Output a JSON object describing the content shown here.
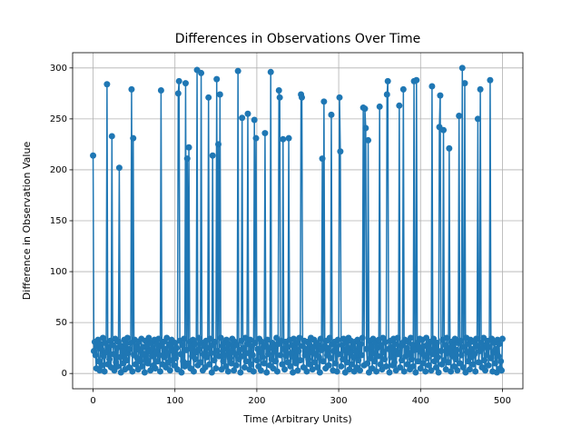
{
  "chart_data": {
    "type": "line",
    "title": "Differences in Observations Over Time",
    "x_label": "Time (Arbitrary Units)",
    "y_label": "Difference in Observation Value",
    "grid": true,
    "xlim": [
      -25,
      525
    ],
    "xticks": [
      0,
      100,
      200,
      300,
      400,
      500
    ],
    "ylim": [
      -15,
      315
    ],
    "yticks": [
      0,
      50,
      100,
      150,
      200,
      250,
      300
    ],
    "x": [
      0,
      1,
      2,
      3,
      4,
      5,
      6,
      7,
      8,
      9,
      10,
      11,
      12,
      13,
      14,
      15,
      16,
      17,
      18,
      19,
      20,
      21,
      22,
      23,
      24,
      25,
      26,
      27,
      28,
      29,
      30,
      31,
      32,
      33,
      34,
      35,
      36,
      37,
      38,
      39,
      40,
      41,
      42,
      43,
      44,
      45,
      46,
      47,
      48,
      49,
      50,
      51,
      52,
      53,
      54,
      55,
      56,
      57,
      58,
      59,
      60,
      61,
      62,
      63,
      64,
      65,
      66,
      67,
      68,
      69,
      70,
      71,
      72,
      73,
      74,
      75,
      76,
      77,
      78,
      79,
      80,
      81,
      82,
      83,
      84,
      85,
      86,
      87,
      88,
      89,
      90,
      91,
      92,
      93,
      94,
      95,
      96,
      97,
      98,
      99,
      100,
      101,
      102,
      103,
      104,
      105,
      106,
      107,
      108,
      109,
      110,
      111,
      112,
      113,
      114,
      115,
      116,
      117,
      118,
      119,
      120,
      121,
      122,
      123,
      124,
      125,
      126,
      127,
      128,
      129,
      130,
      131,
      132,
      133,
      134,
      135,
      136,
      137,
      138,
      139,
      140,
      141,
      142,
      143,
      144,
      145,
      146,
      147,
      148,
      149,
      150,
      151,
      152,
      153,
      154,
      155,
      156,
      157,
      158,
      159,
      160,
      161,
      162,
      163,
      164,
      165,
      166,
      167,
      168,
      169,
      170,
      171,
      172,
      173,
      174,
      175,
      176,
      177,
      178,
      179,
      180,
      181,
      182,
      183,
      184,
      185,
      186,
      187,
      188,
      189,
      190,
      191,
      192,
      193,
      194,
      195,
      196,
      197,
      198,
      199,
      200,
      201,
      202,
      203,
      204,
      205,
      206,
      207,
      208,
      209,
      210,
      211,
      212,
      213,
      214,
      215,
      216,
      217,
      218,
      219,
      220,
      221,
      222,
      223,
      224,
      225,
      226,
      227,
      228,
      229,
      230,
      231,
      232,
      233,
      234,
      235,
      236,
      237,
      238,
      239,
      240,
      241,
      242,
      243,
      244,
      245,
      246,
      247,
      248,
      249,
      250,
      251,
      252,
      253,
      254,
      255,
      256,
      257,
      258,
      259,
      260,
      261,
      262,
      263,
      264,
      265,
      266,
      267,
      268,
      269,
      270,
      271,
      272,
      273,
      274,
      275,
      276,
      277,
      278,
      279,
      280,
      281,
      282,
      283,
      284,
      285,
      286,
      287,
      288,
      289,
      290,
      291,
      292,
      293,
      294,
      295,
      296,
      297,
      298,
      299,
      300,
      301,
      302,
      303,
      304,
      305,
      306,
      307,
      308,
      309,
      310,
      311,
      312,
      313,
      314,
      315,
      316,
      317,
      318,
      319,
      320,
      321,
      322,
      323,
      324,
      325,
      326,
      327,
      328,
      329,
      330,
      331,
      332,
      333,
      334,
      335,
      336,
      337,
      338,
      339,
      340,
      341,
      342,
      343,
      344,
      345,
      346,
      347,
      348,
      349,
      350,
      351,
      352,
      353,
      354,
      355,
      356,
      357,
      358,
      359,
      360,
      361,
      362,
      363,
      364,
      365,
      366,
      367,
      368,
      369,
      370,
      371,
      372,
      373,
      374,
      375,
      376,
      377,
      378,
      379,
      380,
      381,
      382,
      383,
      384,
      385,
      386,
      387,
      388,
      389,
      390,
      391,
      392,
      393,
      394,
      395,
      396,
      397,
      398,
      399,
      400,
      401,
      402,
      403,
      404,
      405,
      406,
      407,
      408,
      409,
      410,
      411,
      412,
      413,
      414,
      415,
      416,
      417,
      418,
      419,
      420,
      421,
      422,
      423,
      424,
      425,
      426,
      427,
      428,
      429,
      430,
      431,
      432,
      433,
      434,
      435,
      436,
      437,
      438,
      439,
      440,
      441,
      442,
      443,
      444,
      445,
      446,
      447,
      448,
      449,
      450,
      451,
      452,
      453,
      454,
      455,
      456,
      457,
      458,
      459,
      460,
      461,
      462,
      463,
      464,
      465,
      466,
      467,
      468,
      469,
      470,
      471,
      472,
      473,
      474,
      475,
      476,
      477,
      478,
      479,
      480,
      481,
      482,
      483,
      484,
      485,
      486,
      487,
      488,
      489,
      490,
      491,
      492,
      493,
      494,
      495,
      496,
      497,
      498,
      499,
      500
    ],
    "series": [
      {
        "color": "#1f77b4",
        "values": [
          214,
          22,
          31,
          18,
          5,
          27,
          33,
          12,
          3,
          29,
          24,
          8,
          35,
          17,
          2,
          30,
          21,
          284,
          9,
          26,
          14,
          32,
          6,
          233,
          28,
          19,
          3,
          34,
          11,
          25,
          7,
          31,
          202,
          16,
          1,
          27,
          22,
          10,
          33,
          4,
          29,
          13,
          35,
          20,
          6,
          24,
          30,
          279,
          2,
          231,
          18,
          33,
          9,
          27,
          15,
          4,
          31,
          23,
          12,
          34,
          7,
          26,
          19,
          1,
          32,
          14,
          28,
          10,
          35,
          22,
          3,
          30,
          17,
          25,
          8,
          33,
          5,
          21,
          29,
          12,
          34,
          18,
          2,
          278,
          27,
          9,
          31,
          16,
          24,
          6,
          35,
          20,
          11,
          29,
          3,
          26,
          33,
          13,
          22,
          8,
          30,
          15,
          25,
          4,
          275,
          287,
          32,
          19,
          1,
          28,
          12,
          34,
          7,
          285,
          23,
          211,
          10,
          222,
          31,
          5,
          26,
          17,
          33,
          2,
          29,
          14,
          21,
          298,
          8,
          35,
          24,
          11,
          295,
          30,
          3,
          19,
          27,
          6,
          32,
          16,
          25,
          271,
          9,
          34,
          20,
          1,
          214,
          28,
          13,
          31,
          5,
          289,
          22,
          225,
          17,
          274,
          35,
          4,
          27,
          12,
          30,
          18,
          7,
          33,
          24,
          2,
          29,
          15,
          21,
          10,
          34,
          26,
          3,
          31,
          19,
          8,
          28,
          297,
          14,
          23,
          1,
          32,
          251,
          17,
          25,
          6,
          35,
          12,
          29,
          255,
          20,
          4,
          33,
          9,
          27,
          18,
          2,
          249,
          30,
          231,
          13,
          24,
          7,
          34,
          21,
          3,
          31,
          16,
          26,
          10,
          236,
          28,
          1,
          33,
          19,
          25,
          8,
          296,
          14,
          30,
          5,
          27,
          22,
          12,
          35,
          2,
          29,
          278,
          271,
          18,
          32,
          9,
          230,
          24,
          4,
          31,
          17,
          26,
          11,
          231,
          33,
          7,
          20,
          28,
          1,
          34,
          15,
          25,
          10,
          30,
          3,
          22,
          35,
          13,
          274,
          271,
          27,
          6,
          32,
          18,
          24,
          2,
          31,
          14,
          29,
          9,
          35,
          21,
          4,
          26,
          33,
          11,
          19,
          30,
          6,
          28,
          16,
          1,
          34,
          23,
          211,
          12,
          267,
          27,
          5,
          32,
          18,
          25,
          8,
          35,
          15,
          254,
          29,
          3,
          22,
          31,
          10,
          26,
          2,
          33,
          19,
          271,
          218,
          7,
          28,
          14,
          34,
          23,
          1,
          30,
          11,
          25,
          35,
          4,
          20,
          32,
          9,
          27,
          16,
          2,
          31,
          22,
          6,
          33,
          13,
          26,
          3,
          29,
          18,
          35,
          261,
          8,
          260,
          241,
          24,
          10,
          229,
          1,
          32,
          15,
          27,
          5,
          34,
          20,
          12,
          30,
          2,
          25,
          17,
          33,
          262,
          9,
          28,
          4,
          35,
          21,
          14,
          31,
          7,
          274,
          287,
          24,
          1,
          32,
          16,
          26,
          8,
          34,
          11,
          29,
          3,
          22,
          35,
          19,
          263,
          6,
          27,
          13,
          30,
          279,
          2,
          33,
          17,
          25,
          9,
          31,
          20,
          4,
          35,
          14,
          28,
          7,
          287,
          23,
          1,
          288,
          30,
          12,
          26,
          34,
          5,
          21,
          33,
          10,
          27,
          18,
          2,
          35,
          15,
          29,
          8,
          24,
          31,
          3,
          282,
          19,
          34,
          12,
          26,
          6,
          30,
          16,
          1,
          242,
          273,
          22,
          9,
          33,
          239,
          13,
          28,
          4,
          35,
          20,
          11,
          221,
          25,
          2,
          31,
          17,
          27,
          7,
          34,
          14,
          23,
          3,
          30,
          253,
          10,
          32,
          18,
          300,
          6,
          26,
          285,
          1,
          35,
          21,
          12,
          29,
          4,
          33,
          16,
          24,
          9,
          31,
          19,
          2,
          34,
          27,
          250,
          11,
          22,
          279,
          30,
          6,
          25,
          35,
          13,
          3,
          28,
          18,
          32,
          8,
          26,
          288,
          15,
          34,
          2,
          21,
          30,
          10,
          24,
          1,
          33,
          17,
          29,
          5,
          12,
          3,
          34
        ]
      }
    ]
  }
}
